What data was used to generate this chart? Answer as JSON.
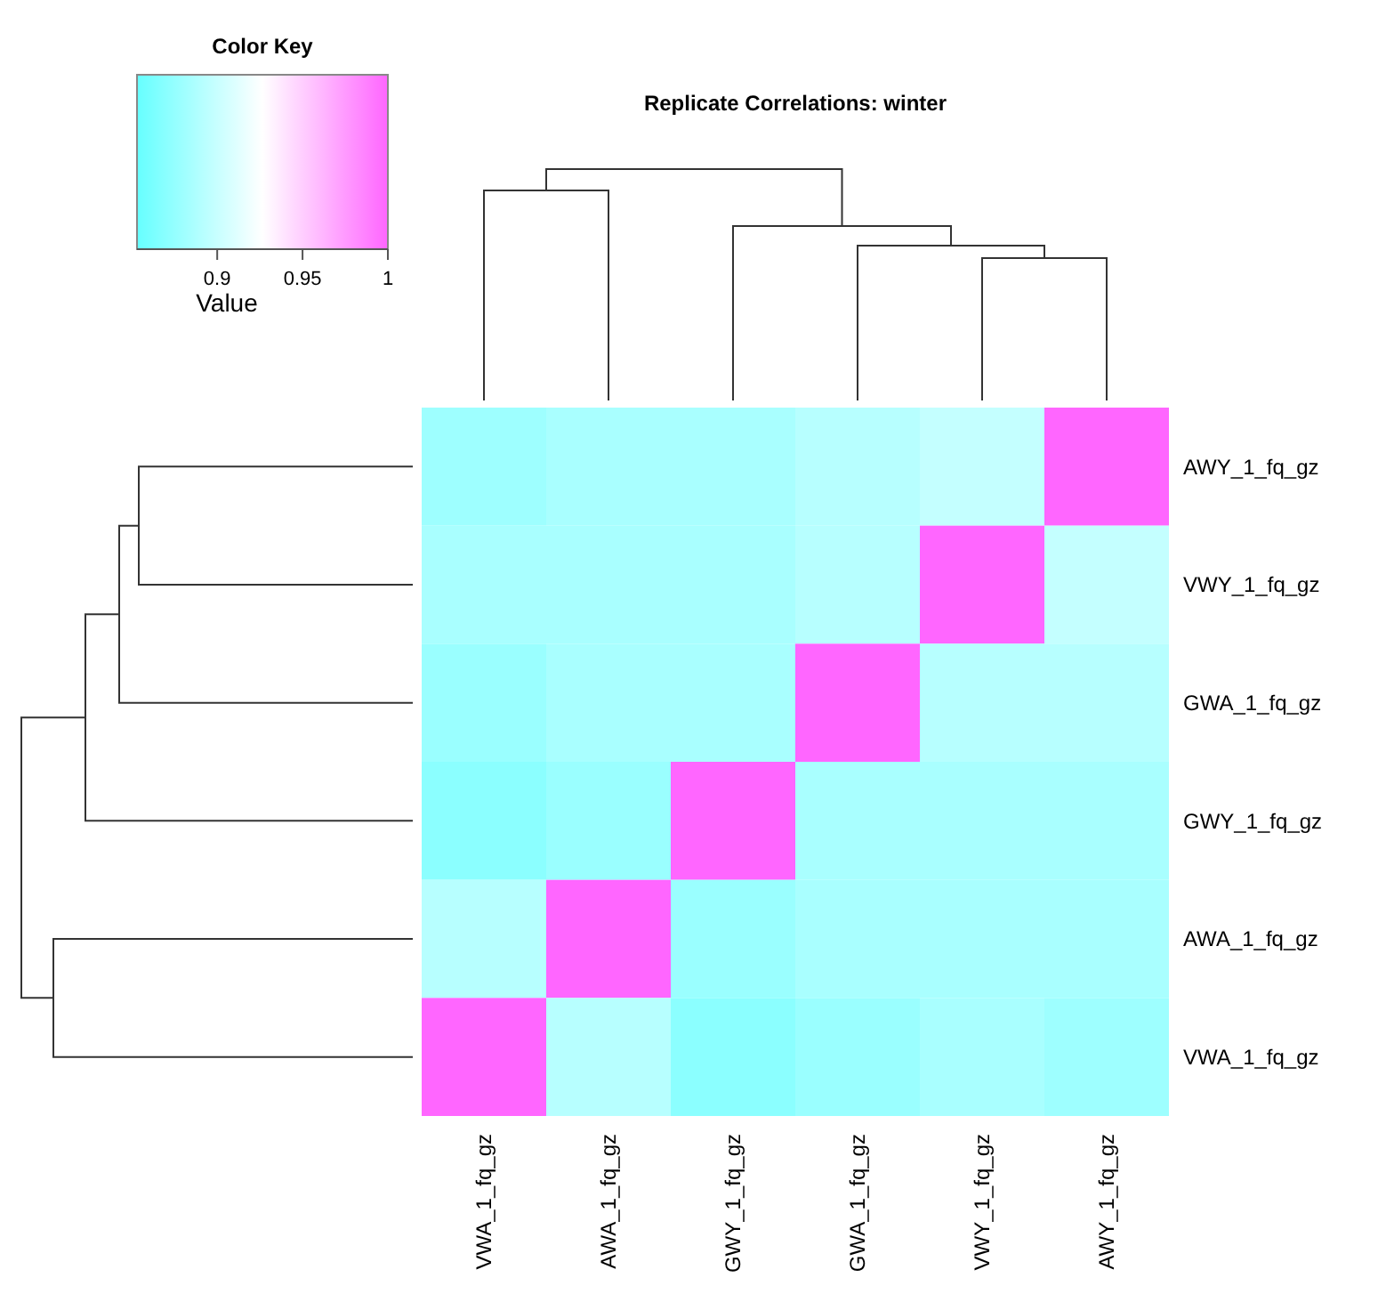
{
  "chart_data": {
    "type": "heatmap",
    "title": "Replicate Correlations: winter",
    "legend_title": "Color Key",
    "clabel": "Value",
    "categories": [
      "VWA_1_fq_gz",
      "AWA_1_fq_gz",
      "GWY_1_fq_gz",
      "GWA_1_fq_gz",
      "VWY_1_fq_gz",
      "AWY_1_fq_gz"
    ],
    "y_categories": [
      "AWY_1_fq_gz",
      "VWY_1_fq_gz",
      "GWA_1_fq_gz",
      "GWY_1_fq_gz",
      "AWA_1_fq_gz",
      "VWA_1_fq_gz"
    ],
    "cells": [
      [
        0.88,
        0.885,
        0.885,
        0.892,
        0.898,
        1
      ],
      [
        0.885,
        0.885,
        0.885,
        0.892,
        1,
        0.898
      ],
      [
        0.878,
        0.885,
        0.885,
        1,
        0.892,
        0.892
      ],
      [
        0.871,
        0.878,
        1,
        0.885,
        0.885,
        0.885
      ],
      [
        0.892,
        1,
        0.878,
        0.885,
        0.885,
        0.885
      ],
      [
        1,
        0.892,
        0.871,
        0.878,
        0.885,
        0.88
      ]
    ],
    "clim": [
      0.853,
      1
    ],
    "cticks": [
      0.9,
      0.95,
      1
    ]
  }
}
